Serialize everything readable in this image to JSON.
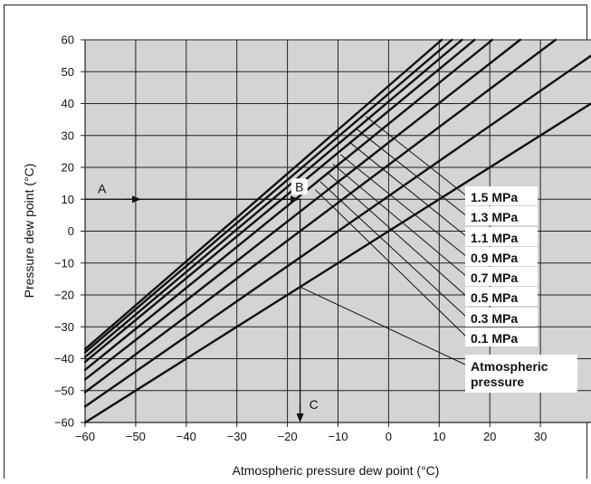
{
  "chart_data": {
    "type": "line",
    "title": "",
    "xlabel": "Atmospheric pressure dew point (°C)",
    "ylabel": "Pressure dew point (°C)",
    "xlim": [
      -60,
      40
    ],
    "ylim": [
      -60,
      60
    ],
    "x_ticks": [
      -60,
      -50,
      -40,
      -30,
      -20,
      -10,
      0,
      10,
      20,
      30
    ],
    "y_ticks": [
      -60,
      -50,
      -40,
      -30,
      -20,
      -10,
      0,
      10,
      20,
      30,
      40,
      50,
      60
    ],
    "grid": true,
    "colors": {
      "plot_background": "#d4d4d4",
      "grid": "#222222",
      "line": "#111111"
    },
    "series": [
      {
        "name": "1.5 MPa",
        "x": [
          -60,
          10.5
        ],
        "y": [
          -37,
          60
        ]
      },
      {
        "name": "1.3 MPa",
        "x": [
          -60,
          12.5
        ],
        "y": [
          -38,
          60
        ]
      },
      {
        "name": "1.1 MPa",
        "x": [
          -60,
          14.5
        ],
        "y": [
          -39.5,
          60
        ]
      },
      {
        "name": "0.9 MPa",
        "x": [
          -60,
          17
        ],
        "y": [
          -41,
          60
        ]
      },
      {
        "name": "0.7 MPa",
        "x": [
          -60,
          20.5
        ],
        "y": [
          -43.5,
          60
        ]
      },
      {
        "name": "0.5 MPa",
        "x": [
          -60,
          26
        ],
        "y": [
          -46.5,
          60
        ]
      },
      {
        "name": "0.3 MPa",
        "x": [
          -60,
          33
        ],
        "y": [
          -50.5,
          60
        ]
      },
      {
        "name": "0.1 MPa",
        "x": [
          -60,
          40
        ],
        "y": [
          -55,
          55
        ]
      },
      {
        "name": "Atmospheric pressure",
        "x": [
          -60,
          40
        ],
        "y": [
          -60,
          40
        ]
      }
    ],
    "annotations": [
      {
        "label": "A",
        "x": -60,
        "y": 10
      },
      {
        "label": "B",
        "x": -18,
        "y": 10
      },
      {
        "label": "C",
        "x": -17.5,
        "y": -60
      }
    ]
  }
}
